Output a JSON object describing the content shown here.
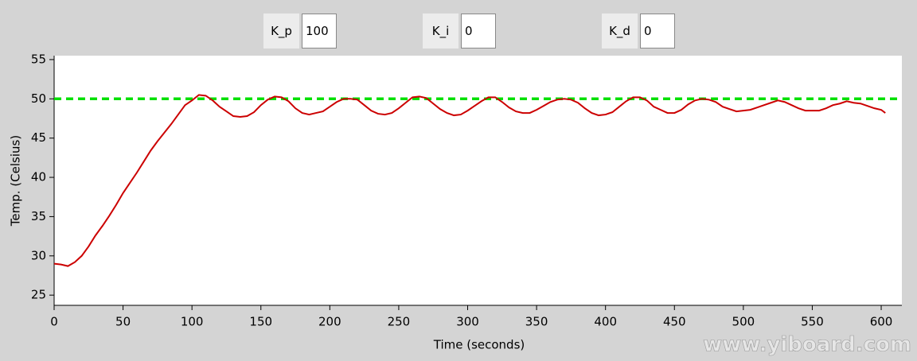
{
  "controls": [
    {
      "label": "K_p",
      "value": "100"
    },
    {
      "label": "K_i",
      "value": "0"
    },
    {
      "label": "K_d",
      "value": "0"
    }
  ],
  "watermark": "www.yiboard.com",
  "chart_data": {
    "type": "line",
    "xlabel": "Time (seconds)",
    "ylabel": "Temp. (Celsius)",
    "x": [
      0,
      5,
      10,
      15,
      20,
      25,
      30,
      35,
      40,
      45,
      50,
      55,
      60,
      65,
      70,
      75,
      80,
      85,
      90,
      95,
      100,
      105,
      110,
      115,
      120,
      125,
      130,
      135,
      140,
      145,
      150,
      155,
      160,
      165,
      170,
      175,
      180,
      185,
      190,
      195,
      200,
      205,
      210,
      215,
      220,
      225,
      230,
      235,
      240,
      245,
      250,
      255,
      260,
      265,
      270,
      275,
      280,
      285,
      290,
      295,
      300,
      305,
      310,
      315,
      320,
      325,
      330,
      335,
      340,
      345,
      350,
      355,
      360,
      365,
      370,
      375,
      380,
      385,
      390,
      395,
      400,
      405,
      410,
      415,
      420,
      425,
      430,
      435,
      440,
      445,
      450,
      455,
      460,
      465,
      470,
      475,
      480,
      485,
      490,
      495,
      500,
      505,
      510,
      515,
      520,
      525,
      530,
      535,
      540,
      545,
      550,
      555,
      560,
      565,
      570,
      575,
      580,
      585,
      590,
      595,
      600,
      603
    ],
    "series": [
      {
        "color": "#cc0000",
        "values": [
          29,
          28.9,
          28.7,
          29.2,
          30,
          31.2,
          32.6,
          33.8,
          35.1,
          36.5,
          38,
          39.3,
          40.6,
          42,
          43.4,
          44.6,
          45.7,
          46.8,
          48,
          49.2,
          49.8,
          50.5,
          50.4,
          49.8,
          49,
          48.4,
          47.8,
          47.7,
          47.8,
          48.3,
          49.2,
          49.9,
          50.3,
          50.2,
          49.7,
          48.8,
          48.2,
          48,
          48.2,
          48.4,
          49,
          49.6,
          50,
          50,
          49.9,
          49.2,
          48.5,
          48.1,
          48,
          48.2,
          48.8,
          49.5,
          50.2,
          50.3,
          50.1,
          49.4,
          48.7,
          48.2,
          47.9,
          48,
          48.5,
          49.1,
          49.7,
          50.2,
          50.2,
          49.6,
          48.9,
          48.4,
          48.2,
          48.2,
          48.6,
          49.1,
          49.6,
          49.9,
          50,
          49.9,
          49.5,
          48.8,
          48.2,
          47.9,
          48,
          48.3,
          49,
          49.7,
          50.2,
          50.2,
          49.8,
          49,
          48.6,
          48.2,
          48.2,
          48.6,
          49.3,
          49.8,
          50,
          49.9,
          49.6,
          49,
          48.7,
          48.4,
          48.5,
          48.6,
          48.9,
          49.2,
          49.5,
          49.8,
          49.6,
          49.2,
          48.8,
          48.5,
          48.5,
          48.5,
          48.8,
          49.2,
          49.4,
          49.7,
          49.5,
          49.4,
          49.1,
          48.8,
          48.6,
          48.2
        ]
      }
    ],
    "hlines": [
      {
        "value": 50,
        "color": "#00e000",
        "dashed": true
      }
    ],
    "xlim": [
      0,
      615
    ],
    "ylim": [
      23.7,
      55.5
    ],
    "xticks": [
      0,
      50,
      100,
      150,
      200,
      250,
      300,
      350,
      400,
      450,
      500,
      550,
      600
    ],
    "yticks": [
      25,
      30,
      35,
      40,
      45,
      50,
      55
    ]
  }
}
